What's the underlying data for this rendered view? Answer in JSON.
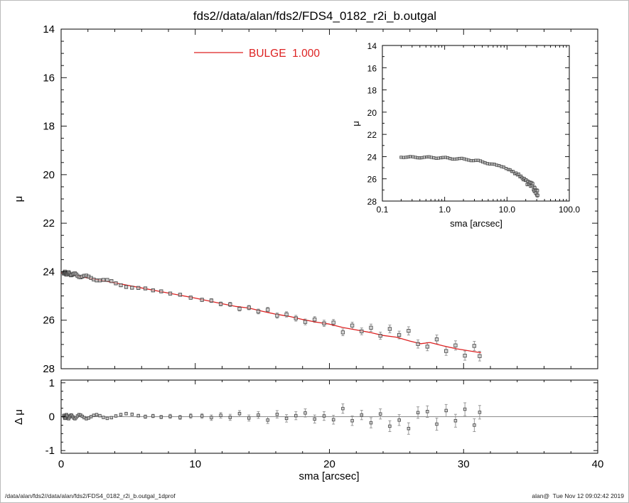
{
  "title": "fds2//data/alan/fds2/FDS4_0182_r2i_b.outgal",
  "footer": {
    "left": "/data/alan/fds2//data/alan/fds2/FDS4_0182_r2i_b.outgal_1dprof",
    "right": "alan@  Tue Nov 12 09:02:42 2019"
  },
  "colors": {
    "model_line": "#dd2222",
    "marker_fill": "#d8d8d8",
    "marker_edge": "#4d4d4d",
    "error_bar": "#8f8f8f",
    "axis": "#000000",
    "zero_line": "#666666"
  },
  "chart_data": {
    "type": "scatter",
    "title": "fds2//data/alan/fds2/FDS4_0182_r2i_b.outgal",
    "panels": {
      "main": {
        "xlabel": "sma [arcsec]",
        "ylabel": "μ",
        "xlim": [
          0,
          40
        ],
        "ylim": [
          28,
          14
        ],
        "y_axis_inverted": true,
        "grid": false,
        "xticks": [
          0,
          10,
          20,
          30,
          40
        ],
        "x_minor_step": 2,
        "yticks": [
          14,
          16,
          18,
          20,
          22,
          24,
          26,
          28
        ],
        "ytick_labels": [
          "14",
          "16",
          "18",
          "20",
          "22",
          "24",
          "26",
          "28"
        ],
        "y_minor_step": 0.5,
        "legend": {
          "label": "BULGE  1.000",
          "position": "top-center"
        }
      },
      "inset": {
        "xlabel": "sma [arcsec]",
        "ylabel": "μ",
        "xscale": "log",
        "xlim": [
          0.1,
          100
        ],
        "ylim": [
          28,
          14
        ],
        "y_axis_inverted": true,
        "grid": false,
        "xticks": [
          0.1,
          1,
          10,
          100
        ],
        "xtick_labels": [
          "0.1",
          "1.0",
          "10.0",
          "100.0"
        ],
        "yticks": [
          14,
          16,
          18,
          20,
          22,
          24,
          26,
          28
        ],
        "ytick_labels": [
          "14",
          "16",
          "18",
          "20",
          "22",
          "24",
          "26",
          "28"
        ],
        "y_minor_step": 1
      },
      "residual": {
        "xlabel": "sma [arcsec]",
        "ylabel": "Δ μ",
        "xlim": [
          0,
          40
        ],
        "ylim": [
          -1.08,
          1.08
        ],
        "xticks": [
          0,
          10,
          20,
          30,
          40
        ],
        "xtick_labels": [
          "0",
          "10",
          "20",
          "30",
          "40"
        ],
        "x_minor_step": 2,
        "yticks": [
          -1,
          0,
          1
        ],
        "ytick_labels": [
          "-1",
          "0",
          "1"
        ],
        "y_minor_step": 0.25,
        "zero_line": true
      }
    },
    "series": {
      "data": {
        "name": "surface-brightness-profile",
        "marker": "open-square",
        "sma": [
          0.2,
          0.22,
          0.24,
          0.26,
          0.28,
          0.31,
          0.34,
          0.37,
          0.4,
          0.43,
          0.47,
          0.52,
          0.56,
          0.61,
          0.67,
          0.73,
          0.79,
          0.87,
          0.94,
          1.03,
          1.12,
          1.22,
          1.33,
          1.45,
          1.58,
          1.72,
          1.88,
          2.05,
          2.23,
          2.43,
          2.65,
          2.89,
          3.15,
          3.44,
          3.75,
          4.08,
          4.45,
          4.85,
          5.29,
          5.76,
          6.28,
          6.85,
          7.46,
          8.13,
          8.87,
          9.66,
          10.5,
          11.2,
          11.9,
          12.6,
          13.3,
          14.0,
          14.7,
          15.4,
          16.1,
          16.8,
          17.5,
          18.2,
          18.9,
          19.6,
          20.3,
          21.0,
          21.7,
          22.4,
          23.1,
          23.8,
          24.5,
          25.2,
          25.9,
          26.6,
          27.3,
          28.0,
          28.7,
          29.4,
          30.1,
          30.8,
          31.2
        ],
        "mu": [
          24.06,
          24.08,
          24.06,
          24.03,
          24.0,
          24.02,
          24.07,
          24.11,
          24.12,
          24.1,
          24.06,
          24.03,
          24.02,
          24.07,
          24.11,
          24.15,
          24.14,
          24.11,
          24.08,
          24.07,
          24.11,
          24.17,
          24.22,
          24.23,
          24.2,
          24.17,
          24.16,
          24.2,
          24.26,
          24.32,
          24.36,
          24.36,
          24.34,
          24.34,
          24.39,
          24.48,
          24.56,
          24.63,
          24.66,
          24.67,
          24.69,
          24.77,
          24.81,
          24.9,
          24.95,
          25.07,
          25.16,
          25.19,
          25.33,
          25.35,
          25.53,
          25.48,
          25.64,
          25.57,
          25.81,
          25.76,
          25.92,
          26.07,
          25.97,
          26.13,
          26.1,
          26.5,
          26.22,
          26.46,
          26.31,
          26.64,
          26.36,
          26.61,
          26.44,
          26.98,
          27.09,
          26.79,
          27.27,
          27.04,
          27.46,
          27.06,
          27.48
        ],
        "mu_err": [
          0.01,
          0.01,
          0.01,
          0.01,
          0.01,
          0.01,
          0.01,
          0.01,
          0.01,
          0.01,
          0.01,
          0.01,
          0.01,
          0.01,
          0.01,
          0.01,
          0.01,
          0.02,
          0.02,
          0.02,
          0.02,
          0.02,
          0.02,
          0.02,
          0.02,
          0.02,
          0.02,
          0.02,
          0.02,
          0.02,
          0.03,
          0.03,
          0.03,
          0.03,
          0.03,
          0.03,
          0.04,
          0.04,
          0.04,
          0.04,
          0.05,
          0.05,
          0.05,
          0.06,
          0.06,
          0.07,
          0.07,
          0.08,
          0.08,
          0.09,
          0.09,
          0.09,
          0.1,
          0.1,
          0.11,
          0.11,
          0.12,
          0.12,
          0.12,
          0.13,
          0.13,
          0.14,
          0.14,
          0.14,
          0.15,
          0.15,
          0.16,
          0.16,
          0.17,
          0.17,
          0.17,
          0.18,
          0.18,
          0.19,
          0.19,
          0.19,
          0.2
        ]
      },
      "model": {
        "name": "BULGE 1.000",
        "type": "line",
        "sma": [
          0,
          2,
          4,
          6,
          8,
          10,
          12,
          13,
          14,
          15,
          16,
          17,
          18,
          19,
          20,
          21,
          22,
          23,
          24,
          25,
          26,
          26.8,
          27.5,
          28.5,
          29.5,
          30.5,
          31.3
        ],
        "mu": [
          24.05,
          24.26,
          24.46,
          24.67,
          24.88,
          25.09,
          25.32,
          25.43,
          25.5,
          25.63,
          25.75,
          25.84,
          25.97,
          26.08,
          26.16,
          26.3,
          26.4,
          26.5,
          26.63,
          26.7,
          26.86,
          26.97,
          26.92,
          27.06,
          27.18,
          27.27,
          27.34
        ]
      },
      "residuals": {
        "name": "profile-minus-model",
        "dmu": [
          0.02,
          0.04,
          0.01,
          -0.02,
          -0.05,
          -0.03,
          0.01,
          0.05,
          0.06,
          0.03,
          -0.01,
          -0.05,
          -0.06,
          -0.02,
          0.02,
          0.05,
          0.04,
          0.0,
          -0.04,
          -0.06,
          -0.03,
          0.02,
          0.06,
          0.05,
          0.01,
          -0.03,
          -0.06,
          -0.04,
          0.0,
          0.04,
          0.06,
          0.03,
          -0.02,
          -0.05,
          -0.03,
          0.02,
          0.06,
          0.09,
          0.07,
          0.03,
          0.0,
          0.02,
          -0.01,
          0.01,
          -0.02,
          0.02,
          0.02,
          -0.03,
          0.04,
          -0.02,
          0.09,
          -0.04,
          0.05,
          -0.1,
          0.07,
          -0.05,
          0.03,
          0.11,
          -0.07,
          0.02,
          -0.09,
          0.24,
          -0.12,
          0.05,
          -0.18,
          0.08,
          -0.28,
          -0.1,
          -0.35,
          0.12,
          0.15,
          -0.22,
          0.18,
          -0.12,
          0.22,
          -0.25,
          0.13
        ]
      }
    }
  }
}
